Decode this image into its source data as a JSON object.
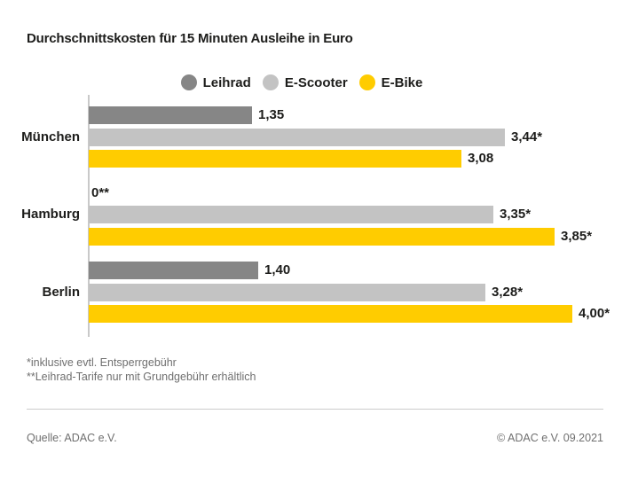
{
  "page": {
    "title": "Durchschnittskosten für 15 Minuten Ausleihe in Euro",
    "footnote_1": "*inklusive evtl. Entsperrgebühr",
    "footnote_2": "**Leihrad-Tarife nur mit Grundgebühr erhältlich",
    "source": "Quelle: ADAC e.V.",
    "copyright": "© ADAC e.V. 09.2021"
  },
  "colors": {
    "leihrad": "#868686",
    "escooter": "#c3c3c3",
    "ebike": "#ffcc00",
    "text": "#1d1d1b",
    "muted_text": "#6f6f6f",
    "axis": "#c9c9c9",
    "divider": "#cccccc"
  },
  "chart_data": {
    "type": "bar",
    "orientation": "horizontal",
    "title": "Durchschnittskosten für 15 Minuten Ausleihe in Euro",
    "unit": "Euro",
    "categories": [
      "München",
      "Hamburg",
      "Berlin"
    ],
    "series": [
      {
        "name": "Leihrad",
        "color": "#868686",
        "values": [
          1.35,
          0,
          1.4
        ],
        "value_labels": [
          "1,35",
          "0**",
          "1,40"
        ]
      },
      {
        "name": "E-Scooter",
        "color": "#c3c3c3",
        "values": [
          3.44,
          3.35,
          3.28
        ],
        "value_labels": [
          "3,44*",
          "3,35*",
          "3,28*"
        ]
      },
      {
        "name": "E-Bike",
        "color": "#ffcc00",
        "values": [
          3.08,
          3.85,
          4.0
        ],
        "value_labels": [
          "3,08",
          "3,85*",
          "4,00*"
        ]
      }
    ],
    "xlim": [
      0,
      4.0
    ],
    "grid": false,
    "legend_position": "top-center",
    "footnotes": [
      "*inklusive evtl. Entsperrgebühr",
      "**Leihrad-Tarife nur mit Grundgebühr erhältlich"
    ]
  }
}
